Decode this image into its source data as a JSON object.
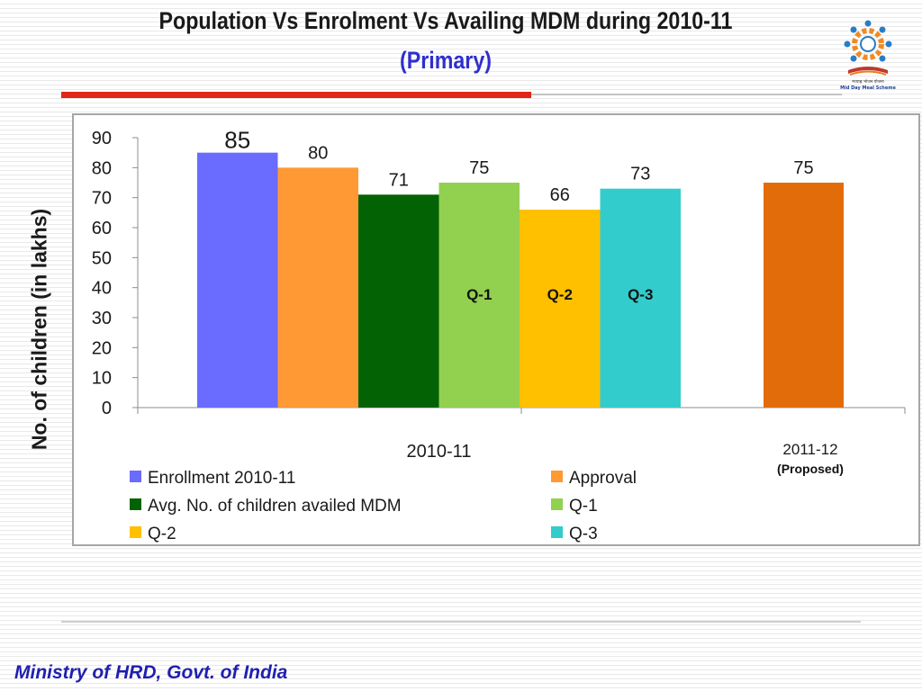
{
  "slide": {
    "title": "Population Vs Enrolment Vs Availing MDM during  2010-11",
    "subtitle": "(Primary)",
    "footer": "Ministry of HRD, Govt. of India",
    "logo_text_1": "मध्याह्न भोजन योजना",
    "logo_text_2": "Mid Day Meal Scheme"
  },
  "chart_data": {
    "type": "bar",
    "ylabel": "No. of children (in lakhs)",
    "ylim": [
      0,
      90
    ],
    "yticks": [
      0,
      10,
      20,
      30,
      40,
      50,
      60,
      70,
      80,
      90
    ],
    "grid": false,
    "groups": [
      {
        "label": "2010-11",
        "bars": [
          {
            "series": "Enrollment 2010-11",
            "value": 85,
            "label": "85",
            "color": "#6a6bff"
          },
          {
            "series": "Approval",
            "value": 80,
            "label": "80",
            "color": "#ff9933"
          },
          {
            "series": "Avg. No. of children availed MDM",
            "value": 71,
            "label": "71",
            "color": "#036203"
          },
          {
            "series": "Q-1",
            "value": 75,
            "label": "75",
            "color": "#92d050",
            "inner_label": "Q-1"
          },
          {
            "series": "Q-2",
            "value": 66,
            "label": "66",
            "color": "#ffc000",
            "inner_label": "Q-2"
          },
          {
            "series": "Q-3",
            "value": 73,
            "label": "73",
            "color": "#33cccc",
            "inner_label": "Q-3"
          }
        ]
      },
      {
        "label": "2011-12",
        "sublabel": "(Proposed)",
        "bars": [
          {
            "series": "Proposed",
            "value": 75,
            "label": "75",
            "color": "#e36c0a"
          }
        ]
      }
    ],
    "legend": {
      "placement": "bottom",
      "items": [
        {
          "name": "Enrollment 2010-11",
          "color": "#6a6bff"
        },
        {
          "name": "Approval",
          "color": "#ff9933"
        },
        {
          "name": "Avg. No. of children availed MDM",
          "color": "#036203"
        },
        {
          "name": "Q-1",
          "color": "#92d050"
        },
        {
          "name": "Q-2",
          "color": "#ffc000"
        },
        {
          "name": "Q-3",
          "color": "#33cccc"
        }
      ]
    }
  }
}
